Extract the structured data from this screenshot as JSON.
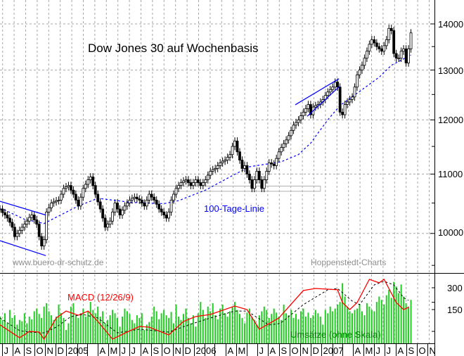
{
  "chart_data": [
    {
      "type": "candlestick",
      "title": "Dow Jones 30 auf Wochenbasis",
      "interval": "weekly",
      "first_week": "2004-06-25",
      "y_scale": "log",
      "ylim": [
        9384,
        14548
      ],
      "y_ticks": [
        14000,
        13000,
        12000,
        11000,
        10000
      ],
      "y_minor_ticks": [
        13500,
        12500,
        11500,
        10500,
        9500
      ],
      "grid": true,
      "closes": [
        10400,
        10340,
        10300,
        10250,
        10180,
        10100,
        9950,
        10000,
        10050,
        10100,
        10150,
        10200,
        10260,
        10300,
        10220,
        10150,
        9950,
        9800,
        9900,
        10350,
        10420,
        10500,
        10520,
        10540,
        10550,
        10650,
        10750,
        10780,
        10800,
        10720,
        10650,
        10550,
        10450,
        10600,
        10750,
        10820,
        10900,
        10950,
        10800,
        10650,
        10520,
        10400,
        10250,
        10100,
        10150,
        10200,
        10350,
        10500,
        10400,
        10300,
        10380,
        10450,
        10500,
        10550,
        10580,
        10600,
        10570,
        10550,
        10500,
        10450,
        10550,
        10650,
        10600,
        10550,
        10480,
        10400,
        10350,
        10300,
        10250,
        10350,
        10550,
        10650,
        10750,
        10800,
        10850,
        10880,
        10900,
        10850,
        10800,
        10850,
        10900,
        10850,
        10800,
        10850,
        10900,
        10980,
        11050,
        11080,
        11100,
        11150,
        11200,
        11230,
        11250,
        11300,
        11350,
        11500,
        11600,
        11400,
        11250,
        11100,
        11150,
        11000,
        10900,
        10750,
        10900,
        11050,
        10900,
        10750,
        10900,
        11050,
        11200,
        11180,
        11150,
        11280,
        11400,
        11480,
        11550,
        11620,
        11700,
        11800,
        11900,
        11950,
        12000,
        12080,
        12150,
        12220,
        12300,
        12100,
        12250,
        12280,
        12300,
        12350,
        12400,
        12480,
        12550,
        12600,
        12650,
        12750,
        12650,
        12150,
        12100,
        12300,
        12350,
        12400,
        12450,
        12650,
        12900,
        13000,
        13100,
        13250,
        13400,
        13550,
        13650,
        13580,
        13500,
        13450,
        13400,
        13520,
        13650,
        13900,
        13850,
        13350,
        13250,
        13250,
        13400,
        13450,
        13150,
        13450,
        13800
      ],
      "moving_average": {
        "label": "100-Tage-Linie",
        "color": "#0000ff",
        "values": [
          10400,
          10400,
          10381,
          10362,
          10343,
          10324,
          10306,
          10287,
          10268,
          10249,
          10230,
          10221,
          10212,
          10204,
          10195,
          10186,
          10177,
          10169,
          10160,
          10181,
          10201,
          10222,
          10243,
          10264,
          10284,
          10305,
          10326,
          10346,
          10367,
          10388,
          10409,
          10429,
          10450,
          10466,
          10483,
          10499,
          10515,
          10531,
          10548,
          10564,
          10580,
          10575,
          10570,
          10565,
          10560,
          10555,
          10550,
          10545,
          10540,
          10535,
          10530,
          10525,
          10520,
          10515,
          10510,
          10508,
          10507,
          10505,
          10504,
          10502,
          10501,
          10499,
          10498,
          10496,
          10495,
          10493,
          10492,
          10490,
          10498,
          10507,
          10515,
          10523,
          10532,
          10540,
          10556,
          10573,
          10589,
          10605,
          10622,
          10638,
          10655,
          10671,
          10687,
          10704,
          10720,
          10743,
          10766,
          10789,
          10812,
          10835,
          10858,
          10881,
          10904,
          10927,
          10950,
          10973,
          10995,
          11018,
          11040,
          11063,
          11085,
          11108,
          11130,
          11137,
          11144,
          11151,
          11158,
          11165,
          11172,
          11178,
          11185,
          11192,
          11199,
          11206,
          11213,
          11220,
          11239,
          11257,
          11276,
          11294,
          11313,
          11331,
          11350,
          11392,
          11434,
          11476,
          11518,
          11560,
          11623,
          11686,
          11749,
          11811,
          11874,
          11937,
          12000,
          12056,
          12112,
          12168,
          12224,
          12280,
          12315,
          12350,
          12385,
          12420,
          12455,
          12490,
          12525,
          12560,
          12596,
          12633,
          12669,
          12705,
          12741,
          12778,
          12814,
          12850,
          12900,
          12950,
          13000,
          13050,
          13100,
          13127,
          13154,
          13181,
          13209,
          13236,
          13263,
          13290,
          13317
        ]
      },
      "support_zone": {
        "from": "2004-06-25",
        "to": "2006-12-29",
        "low": 10700,
        "high": 10790
      },
      "trend_lines": [
        {
          "from": [
            "2004-06-25",
            10530
          ],
          "to": [
            "2004-11-03",
            10300
          ]
        },
        {
          "from": [
            "2004-06-25",
            9884
          ],
          "to": [
            "2004-11-03",
            9650
          ]
        },
        {
          "from": [
            "2006-10-18",
            12295
          ],
          "to": [
            "2007-02-20",
            12820
          ]
        },
        {
          "from": [
            "2006-11-21",
            12070
          ],
          "to": [
            "2007-02-21",
            12660
          ]
        }
      ],
      "annotations": {
        "website": "www.buero-dr-schutz.de",
        "source": "Hoppenstedt-Charts"
      }
    },
    {
      "type": "line+bar",
      "title": "MACD (12/26/9)",
      "y_ticks": [
        300,
        150
      ],
      "macd_color": "#ff0000",
      "macd": [
        [
          "2004-06-25",
          45
        ],
        [
          "2004-08-20",
          -44
        ],
        [
          "2004-09-17",
          0
        ],
        [
          "2004-10-15",
          -5
        ],
        [
          "2004-10-29",
          -53
        ],
        [
          "2004-12-03",
          92
        ],
        [
          "2004-12-31",
          140
        ],
        [
          "2005-02-04",
          111
        ],
        [
          "2005-03-04",
          140
        ],
        [
          "2005-04-01",
          68
        ],
        [
          "2005-05-13",
          -53
        ],
        [
          "2005-06-24",
          -5
        ],
        [
          "2005-07-29",
          34
        ],
        [
          "2005-08-26",
          29
        ],
        [
          "2005-10-21",
          -24
        ],
        [
          "2005-12-02",
          68
        ],
        [
          "2006-01-06",
          102
        ],
        [
          "2006-02-17",
          116
        ],
        [
          "2006-04-28",
          174
        ],
        [
          "2006-06-02",
          150
        ],
        [
          "2006-07-07",
          15
        ],
        [
          "2006-09-01",
          92
        ],
        [
          "2006-09-08",
          111
        ],
        [
          "2006-11-10",
          281
        ],
        [
          "2006-12-15",
          295
        ],
        [
          "2007-02-16",
          286
        ],
        [
          "2007-03-02",
          198
        ],
        [
          "2007-03-23",
          150
        ],
        [
          "2007-04-13",
          198
        ],
        [
          "2007-05-18",
          358
        ],
        [
          "2007-06-15",
          334
        ],
        [
          "2007-06-29",
          358
        ],
        [
          "2007-08-03",
          198
        ],
        [
          "2007-08-24",
          150
        ],
        [
          "2007-09-07",
          165
        ]
      ],
      "signal": [
        [
          "2004-06-25",
          92
        ],
        [
          "2004-08-20",
          5
        ],
        [
          "2004-09-17",
          -5
        ],
        [
          "2004-10-29",
          -10
        ],
        [
          "2004-12-03",
          29
        ],
        [
          "2005-01-14",
          102
        ],
        [
          "2005-02-18",
          116
        ],
        [
          "2005-04-01",
          92
        ],
        [
          "2005-05-27",
          -10
        ],
        [
          "2005-07-29",
          15
        ],
        [
          "2005-10-21",
          -5
        ],
        [
          "2005-12-16",
          44
        ],
        [
          "2006-02-17",
          92
        ],
        [
          "2006-04-28",
          140
        ],
        [
          "2006-06-02",
          140
        ],
        [
          "2006-08-04",
          44
        ],
        [
          "2006-09-01",
          53
        ],
        [
          "2006-09-08",
          60
        ],
        [
          "2006-11-10",
          184
        ],
        [
          "2007-01-19",
          286
        ],
        [
          "2007-02-16",
          295
        ],
        [
          "2007-03-30",
          208
        ],
        [
          "2007-04-20",
          184
        ],
        [
          "2007-06-01",
          320
        ],
        [
          "2007-06-29",
          344
        ],
        [
          "2007-07-27",
          320
        ],
        [
          "2007-08-24",
          232
        ],
        [
          "2007-09-07",
          213
        ]
      ],
      "volume_label": "Umsätze (ohne Skala)",
      "volume_color": "#22cc22",
      "volume_relative": [
        40,
        35,
        45,
        30,
        50,
        38,
        42,
        28,
        35,
        33,
        45,
        30,
        40,
        36,
        48,
        52,
        44,
        38,
        55,
        60,
        48,
        42,
        35,
        40,
        58,
        45,
        38,
        20,
        30,
        55,
        60,
        42,
        38,
        45,
        52,
        40,
        48,
        62,
        50,
        45,
        55,
        40,
        48,
        30,
        35,
        42,
        50,
        45,
        38,
        25,
        40,
        52,
        48,
        44,
        35,
        30,
        42,
        38,
        45,
        20,
        28,
        32,
        40,
        55,
        48,
        36,
        45,
        50,
        42,
        38,
        47,
        30,
        58,
        40,
        35,
        44,
        52,
        38,
        30,
        42,
        25,
        45,
        62,
        50,
        38,
        55,
        48,
        60,
        42,
        36,
        52,
        58,
        45,
        40,
        48,
        55,
        62,
        50,
        44,
        38,
        30,
        46,
        52,
        40,
        35,
        28,
        42,
        48,
        55,
        50,
        38,
        44,
        52,
        46,
        40,
        35,
        58,
        45,
        42,
        50,
        38,
        44,
        36,
        48,
        52,
        40,
        46,
        38,
        42,
        50,
        45,
        40,
        28,
        50,
        45,
        55,
        48,
        52,
        58,
        62,
        90,
        70,
        55,
        48,
        45,
        50,
        52,
        58,
        48,
        42,
        60,
        55,
        50,
        48,
        62,
        70,
        65,
        58,
        72,
        80,
        68,
        92,
        85,
        75,
        88,
        70,
        60,
        55,
        65
      ]
    }
  ],
  "x_axis": {
    "first_month": "2004-07",
    "month_labels": [
      "J",
      "A",
      "S",
      "O",
      "N",
      "D",
      "2005",
      "",
      "",
      "A",
      "M",
      "J",
      "J",
      "A",
      "S",
      "O",
      "N",
      "D",
      "2006",
      "",
      "",
      "A",
      "M",
      "",
      "J",
      "A",
      "S",
      "O",
      "N",
      "D",
      "2007",
      "",
      "",
      "A",
      "M",
      "J",
      "J",
      "A",
      "S",
      "O",
      "N"
    ]
  },
  "labels": {
    "title": "Dow Jones 30 auf Wochenbasis",
    "ma_label": "100-Tage-Linie",
    "website": "www.buero-dr-schutz.de",
    "source": "Hoppenstedt-Charts",
    "macd_label": "MACD (12/26/9)",
    "volume_label": "Umsätze (ohne Skala)",
    "y_ticks": [
      "14000",
      "13000",
      "12000",
      "11000",
      "10000"
    ],
    "macd_ticks": [
      "300",
      "150"
    ]
  }
}
